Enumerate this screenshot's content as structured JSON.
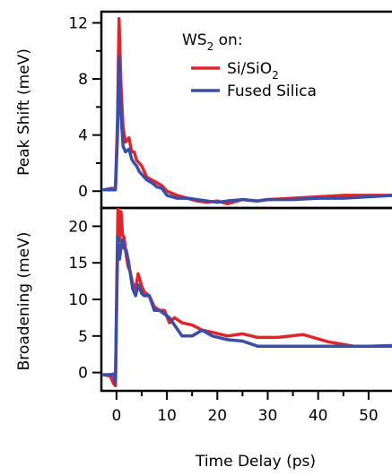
{
  "chart_data": [
    {
      "type": "line",
      "panel": "top",
      "title": "",
      "xlabel": "",
      "ylabel": "Peak Shift (meV)",
      "xlim": [
        -3,
        55
      ],
      "ylim": [
        -1.2,
        12.8
      ],
      "yticks_major": [
        0,
        4,
        8,
        12
      ],
      "yticks_minor": [
        2,
        6,
        10
      ],
      "grid": false,
      "legend": {
        "placement": "top-right",
        "title_base": "WS",
        "title_sub": "2",
        "title_tail": " on:",
        "entries": [
          {
            "label_base": "Si/SiO",
            "label_sub": "2",
            "color": "#e0262b"
          },
          {
            "label_base": "Fused Silica",
            "label_sub": "",
            "color": "#3a4da8"
          }
        ]
      },
      "series": [
        {
          "name": "Si/SiO2",
          "color": "#e0262b",
          "x": [
            -2.5,
            -1,
            -0.2,
            0.2,
            0.5,
            0.9,
            1.3,
            1.8,
            2.5,
            3,
            3.5,
            4,
            4.5,
            5,
            6,
            7,
            8,
            9,
            10,
            12,
            14,
            16,
            18,
            20,
            22,
            25,
            28,
            30,
            35,
            40,
            45,
            50,
            55
          ],
          "y": [
            0.1,
            0.2,
            0.2,
            5.0,
            12.3,
            7.5,
            4.5,
            3.5,
            3.8,
            2.8,
            2.8,
            2.2,
            2.0,
            1.8,
            1.0,
            0.8,
            0.6,
            0.4,
            0.0,
            -0.3,
            -0.5,
            -0.7,
            -0.8,
            -0.7,
            -0.9,
            -0.6,
            -0.7,
            -0.6,
            -0.5,
            -0.4,
            -0.3,
            -0.3,
            -0.3
          ]
        },
        {
          "name": "Fused Silica",
          "color": "#3a4da8",
          "x": [
            -2.5,
            -1,
            -0.2,
            0.2,
            0.5,
            0.9,
            1.3,
            1.8,
            2.5,
            3,
            3.5,
            4,
            4.5,
            5,
            6,
            7,
            8,
            9,
            10,
            12,
            14,
            16,
            18,
            20,
            22,
            25,
            28,
            30,
            35,
            40,
            45,
            50,
            55
          ],
          "y": [
            0.1,
            0.1,
            0.1,
            4.0,
            9.6,
            5.5,
            3.2,
            2.8,
            3.0,
            2.3,
            2.0,
            1.8,
            1.4,
            1.2,
            0.8,
            0.6,
            0.3,
            0.2,
            -0.3,
            -0.5,
            -0.5,
            -0.6,
            -0.7,
            -0.8,
            -0.7,
            -0.6,
            -0.7,
            -0.6,
            -0.6,
            -0.5,
            -0.5,
            -0.4,
            -0.3
          ]
        }
      ]
    },
    {
      "type": "line",
      "panel": "bottom",
      "title": "",
      "xlabel": "Time Delay (ps)",
      "ylabel": "Broadening (meV)",
      "xlim": [
        -3,
        55
      ],
      "ylim": [
        -2.5,
        22.5
      ],
      "xticks": [
        0,
        10,
        20,
        30,
        40,
        50
      ],
      "xticks_minor": [
        5,
        15,
        25,
        35,
        45
      ],
      "yticks_major": [
        0,
        5,
        10,
        15,
        20
      ],
      "grid": false,
      "series": [
        {
          "name": "Si/SiO2",
          "color": "#e0262b",
          "x": [
            -2.5,
            -1.2,
            -0.6,
            -0.2,
            0.1,
            0.3,
            0.6,
            0.9,
            1.2,
            1.5,
            1.9,
            2.3,
            2.7,
            3.2,
            3.8,
            4.3,
            5,
            5.5,
            6.5,
            7.5,
            8.5,
            9.5,
            10.5,
            11.5,
            13,
            15,
            17,
            19,
            22,
            25,
            28,
            32,
            37,
            42,
            47,
            50,
            55
          ],
          "y": [
            -0.3,
            -0.5,
            -1.5,
            -1.8,
            14,
            22.3,
            18,
            22,
            18.8,
            18.5,
            16.2,
            14.5,
            13.8,
            12.2,
            11.5,
            13.5,
            11.8,
            11.0,
            10.5,
            9.0,
            8.5,
            8.5,
            6.8,
            7.5,
            6.8,
            6.5,
            5.8,
            5.5,
            5.0,
            5.3,
            4.8,
            4.8,
            5.2,
            4.2,
            3.6,
            3.6,
            3.6
          ]
        },
        {
          "name": "Fused Silica",
          "color": "#3a4da8",
          "x": [
            -2.5,
            -1.2,
            -0.6,
            -0.2,
            0.1,
            0.3,
            0.6,
            0.9,
            1.2,
            1.5,
            1.9,
            2.3,
            2.7,
            3.2,
            3.8,
            4.3,
            5,
            5.5,
            6.5,
            7.5,
            8.5,
            9.5,
            10.5,
            11.5,
            13,
            15,
            17,
            19,
            22,
            25,
            28,
            32,
            37,
            42,
            47,
            50,
            55
          ],
          "y": [
            -0.3,
            -0.3,
            -0.2,
            -1.5,
            12,
            18.5,
            15.5,
            17,
            18.2,
            17,
            16.8,
            15.5,
            13.8,
            11.5,
            10.5,
            12.0,
            10.8,
            10.5,
            10.5,
            8.5,
            8.5,
            8.0,
            7.5,
            6.5,
            5.0,
            5.0,
            5.8,
            5.0,
            4.5,
            4.3,
            3.6,
            3.6,
            3.6,
            3.6,
            3.6,
            3.6,
            3.7
          ]
        }
      ]
    }
  ]
}
